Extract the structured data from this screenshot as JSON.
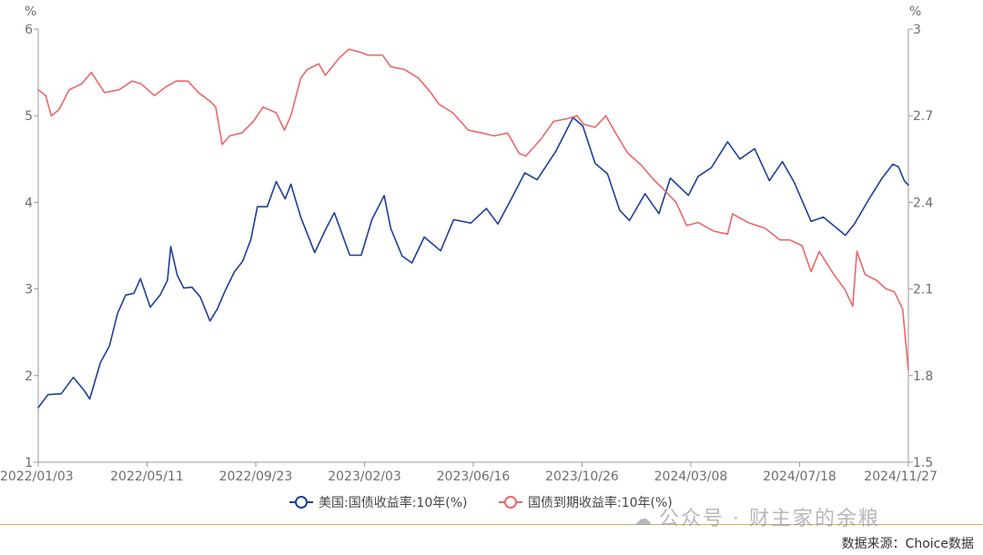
{
  "chart_data": {
    "type": "line",
    "left_axis": {
      "unit": "%",
      "ylim": [
        1,
        6
      ],
      "ticks": [
        "1",
        "2",
        "3",
        "4",
        "5",
        "6"
      ]
    },
    "right_axis": {
      "unit": "%",
      "ylim": [
        1.5,
        3
      ],
      "ticks": [
        "1.5",
        "1.8",
        "2.1",
        "2.4",
        "2.7",
        "3"
      ]
    },
    "x_ticks": [
      "2022/01/03",
      "2022/05/11",
      "2022/09/23",
      "2023/02/03",
      "2023/06/16",
      "2023/10/26",
      "2024/03/08",
      "2024/07/18",
      "2024/11/27"
    ],
    "x_range": [
      "2022-01-03",
      "2024-12-02"
    ],
    "legend_position": "bottom",
    "grid": false,
    "series": [
      {
        "name": "美国:国债收益率:10年(%)",
        "axis": "left",
        "color": "#1f3f99",
        "points": [
          [
            "2022-01-03",
            1.63
          ],
          [
            "2022-01-15",
            1.78
          ],
          [
            "2022-01-31",
            1.79
          ],
          [
            "2022-02-15",
            1.98
          ],
          [
            "2022-02-28",
            1.83
          ],
          [
            "2022-03-07",
            1.73
          ],
          [
            "2022-03-20",
            2.15
          ],
          [
            "2022-03-31",
            2.34
          ],
          [
            "2022-04-10",
            2.72
          ],
          [
            "2022-04-20",
            2.93
          ],
          [
            "2022-04-30",
            2.95
          ],
          [
            "2022-05-08",
            3.12
          ],
          [
            "2022-05-20",
            2.79
          ],
          [
            "2022-06-01",
            2.93
          ],
          [
            "2022-06-10",
            3.1
          ],
          [
            "2022-06-14",
            3.49
          ],
          [
            "2022-06-22",
            3.16
          ],
          [
            "2022-06-30",
            3.01
          ],
          [
            "2022-07-10",
            3.02
          ],
          [
            "2022-07-20",
            2.91
          ],
          [
            "2022-08-01",
            2.63
          ],
          [
            "2022-08-10",
            2.77
          ],
          [
            "2022-08-20",
            2.99
          ],
          [
            "2022-08-31",
            3.2
          ],
          [
            "2022-09-10",
            3.32
          ],
          [
            "2022-09-20",
            3.57
          ],
          [
            "2022-09-28",
            3.95
          ],
          [
            "2022-10-10",
            3.95
          ],
          [
            "2022-10-21",
            4.24
          ],
          [
            "2022-11-01",
            4.04
          ],
          [
            "2022-11-08",
            4.21
          ],
          [
            "2022-11-20",
            3.83
          ],
          [
            "2022-12-07",
            3.42
          ],
          [
            "2022-12-20",
            3.68
          ],
          [
            "2022-12-31",
            3.88
          ],
          [
            "2023-01-19",
            3.39
          ],
          [
            "2023-02-02",
            3.39
          ],
          [
            "2023-02-15",
            3.8
          ],
          [
            "2023-03-02",
            4.08
          ],
          [
            "2023-03-10",
            3.7
          ],
          [
            "2023-03-24",
            3.38
          ],
          [
            "2023-04-05",
            3.3
          ],
          [
            "2023-04-20",
            3.6
          ],
          [
            "2023-05-10",
            3.44
          ],
          [
            "2023-05-26",
            3.8
          ],
          [
            "2023-06-16",
            3.76
          ],
          [
            "2023-07-05",
            3.93
          ],
          [
            "2023-07-19",
            3.75
          ],
          [
            "2023-08-04",
            4.03
          ],
          [
            "2023-08-21",
            4.34
          ],
          [
            "2023-09-05",
            4.26
          ],
          [
            "2023-09-28",
            4.59
          ],
          [
            "2023-10-19",
            4.98
          ],
          [
            "2023-10-31",
            4.88
          ],
          [
            "2023-11-15",
            4.45
          ],
          [
            "2023-11-30",
            4.33
          ],
          [
            "2023-12-15",
            3.91
          ],
          [
            "2023-12-27",
            3.79
          ],
          [
            "2024-01-15",
            4.1
          ],
          [
            "2024-02-01",
            3.87
          ],
          [
            "2024-02-15",
            4.28
          ],
          [
            "2024-03-08",
            4.08
          ],
          [
            "2024-03-20",
            4.3
          ],
          [
            "2024-04-05",
            4.4
          ],
          [
            "2024-04-25",
            4.7
          ],
          [
            "2024-05-10",
            4.5
          ],
          [
            "2024-05-28",
            4.62
          ],
          [
            "2024-06-15",
            4.25
          ],
          [
            "2024-07-01",
            4.47
          ],
          [
            "2024-07-15",
            4.24
          ],
          [
            "2024-08-05",
            3.78
          ],
          [
            "2024-08-20",
            3.83
          ],
          [
            "2024-09-16",
            3.62
          ],
          [
            "2024-09-27",
            3.75
          ],
          [
            "2024-10-15",
            4.04
          ],
          [
            "2024-10-31",
            4.28
          ],
          [
            "2024-11-13",
            4.44
          ],
          [
            "2024-11-20",
            4.41
          ],
          [
            "2024-11-27",
            4.25
          ],
          [
            "2024-12-02",
            4.2
          ]
        ]
      },
      {
        "name": "国债到期收益率:10年(%)",
        "axis": "right",
        "color": "#e8686a",
        "points": [
          [
            "2022-01-03",
            2.79
          ],
          [
            "2022-01-12",
            2.77
          ],
          [
            "2022-01-19",
            2.7
          ],
          [
            "2022-01-28",
            2.72
          ],
          [
            "2022-02-10",
            2.79
          ],
          [
            "2022-02-25",
            2.81
          ],
          [
            "2022-03-09",
            2.85
          ],
          [
            "2022-03-25",
            2.78
          ],
          [
            "2022-04-12",
            2.79
          ],
          [
            "2022-04-28",
            2.82
          ],
          [
            "2022-05-09",
            2.81
          ],
          [
            "2022-05-25",
            2.77
          ],
          [
            "2022-06-08",
            2.8
          ],
          [
            "2022-06-21",
            2.82
          ],
          [
            "2022-07-05",
            2.82
          ],
          [
            "2022-07-18",
            2.78
          ],
          [
            "2022-08-01",
            2.75
          ],
          [
            "2022-08-08",
            2.73
          ],
          [
            "2022-08-16",
            2.6
          ],
          [
            "2022-08-25",
            2.63
          ],
          [
            "2022-09-09",
            2.64
          ],
          [
            "2022-09-23",
            2.68
          ],
          [
            "2022-10-05",
            2.73
          ],
          [
            "2022-10-21",
            2.71
          ],
          [
            "2022-10-31",
            2.65
          ],
          [
            "2022-11-08",
            2.7
          ],
          [
            "2022-11-20",
            2.83
          ],
          [
            "2022-11-28",
            2.86
          ],
          [
            "2022-12-12",
            2.88
          ],
          [
            "2022-12-20",
            2.84
          ],
          [
            "2023-01-06",
            2.9
          ],
          [
            "2023-01-18",
            2.93
          ],
          [
            "2023-02-01",
            2.92
          ],
          [
            "2023-02-10",
            2.91
          ],
          [
            "2023-02-28",
            2.91
          ],
          [
            "2023-03-10",
            2.87
          ],
          [
            "2023-03-27",
            2.86
          ],
          [
            "2023-04-13",
            2.83
          ],
          [
            "2023-04-28",
            2.78
          ],
          [
            "2023-05-08",
            2.74
          ],
          [
            "2023-05-25",
            2.71
          ],
          [
            "2023-06-13",
            2.65
          ],
          [
            "2023-06-30",
            2.64
          ],
          [
            "2023-07-14",
            2.63
          ],
          [
            "2023-07-31",
            2.64
          ],
          [
            "2023-08-14",
            2.57
          ],
          [
            "2023-08-22",
            2.56
          ],
          [
            "2023-09-10",
            2.62
          ],
          [
            "2023-09-25",
            2.68
          ],
          [
            "2023-10-12",
            2.69
          ],
          [
            "2023-10-24",
            2.7
          ],
          [
            "2023-11-01",
            2.67
          ],
          [
            "2023-11-15",
            2.66
          ],
          [
            "2023-11-28",
            2.7
          ],
          [
            "2023-12-10",
            2.64
          ],
          [
            "2023-12-25",
            2.57
          ],
          [
            "2024-01-10",
            2.53
          ],
          [
            "2024-01-25",
            2.48
          ],
          [
            "2024-02-05",
            2.45
          ],
          [
            "2024-02-22",
            2.4
          ],
          [
            "2024-03-06",
            2.32
          ],
          [
            "2024-03-20",
            2.33
          ],
          [
            "2024-04-08",
            2.3
          ],
          [
            "2024-04-25",
            2.29
          ],
          [
            "2024-05-01",
            2.36
          ],
          [
            "2024-05-20",
            2.33
          ],
          [
            "2024-06-10",
            2.31
          ],
          [
            "2024-06-28",
            2.27
          ],
          [
            "2024-07-10",
            2.27
          ],
          [
            "2024-07-25",
            2.25
          ],
          [
            "2024-08-05",
            2.16
          ],
          [
            "2024-08-15",
            2.23
          ],
          [
            "2024-09-02",
            2.15
          ],
          [
            "2024-09-15",
            2.1
          ],
          [
            "2024-09-25",
            2.04
          ],
          [
            "2024-09-30",
            2.23
          ],
          [
            "2024-10-10",
            2.15
          ],
          [
            "2024-10-24",
            2.13
          ],
          [
            "2024-11-05",
            2.1
          ],
          [
            "2024-11-15",
            2.09
          ],
          [
            "2024-11-25",
            2.03
          ],
          [
            "2024-12-02",
            1.82
          ]
        ]
      }
    ]
  },
  "footer": {
    "watermark": "公众号 · 财主家的余粮",
    "source": "数据来源：Choice数据"
  },
  "colors": {
    "us_treasury": "#1f3f99",
    "cn_treasury": "#e8686a",
    "axis": "#999999",
    "footer_rule": "#e0a35a"
  },
  "icons": {
    "watermark_icon": "wechat-icon"
  }
}
